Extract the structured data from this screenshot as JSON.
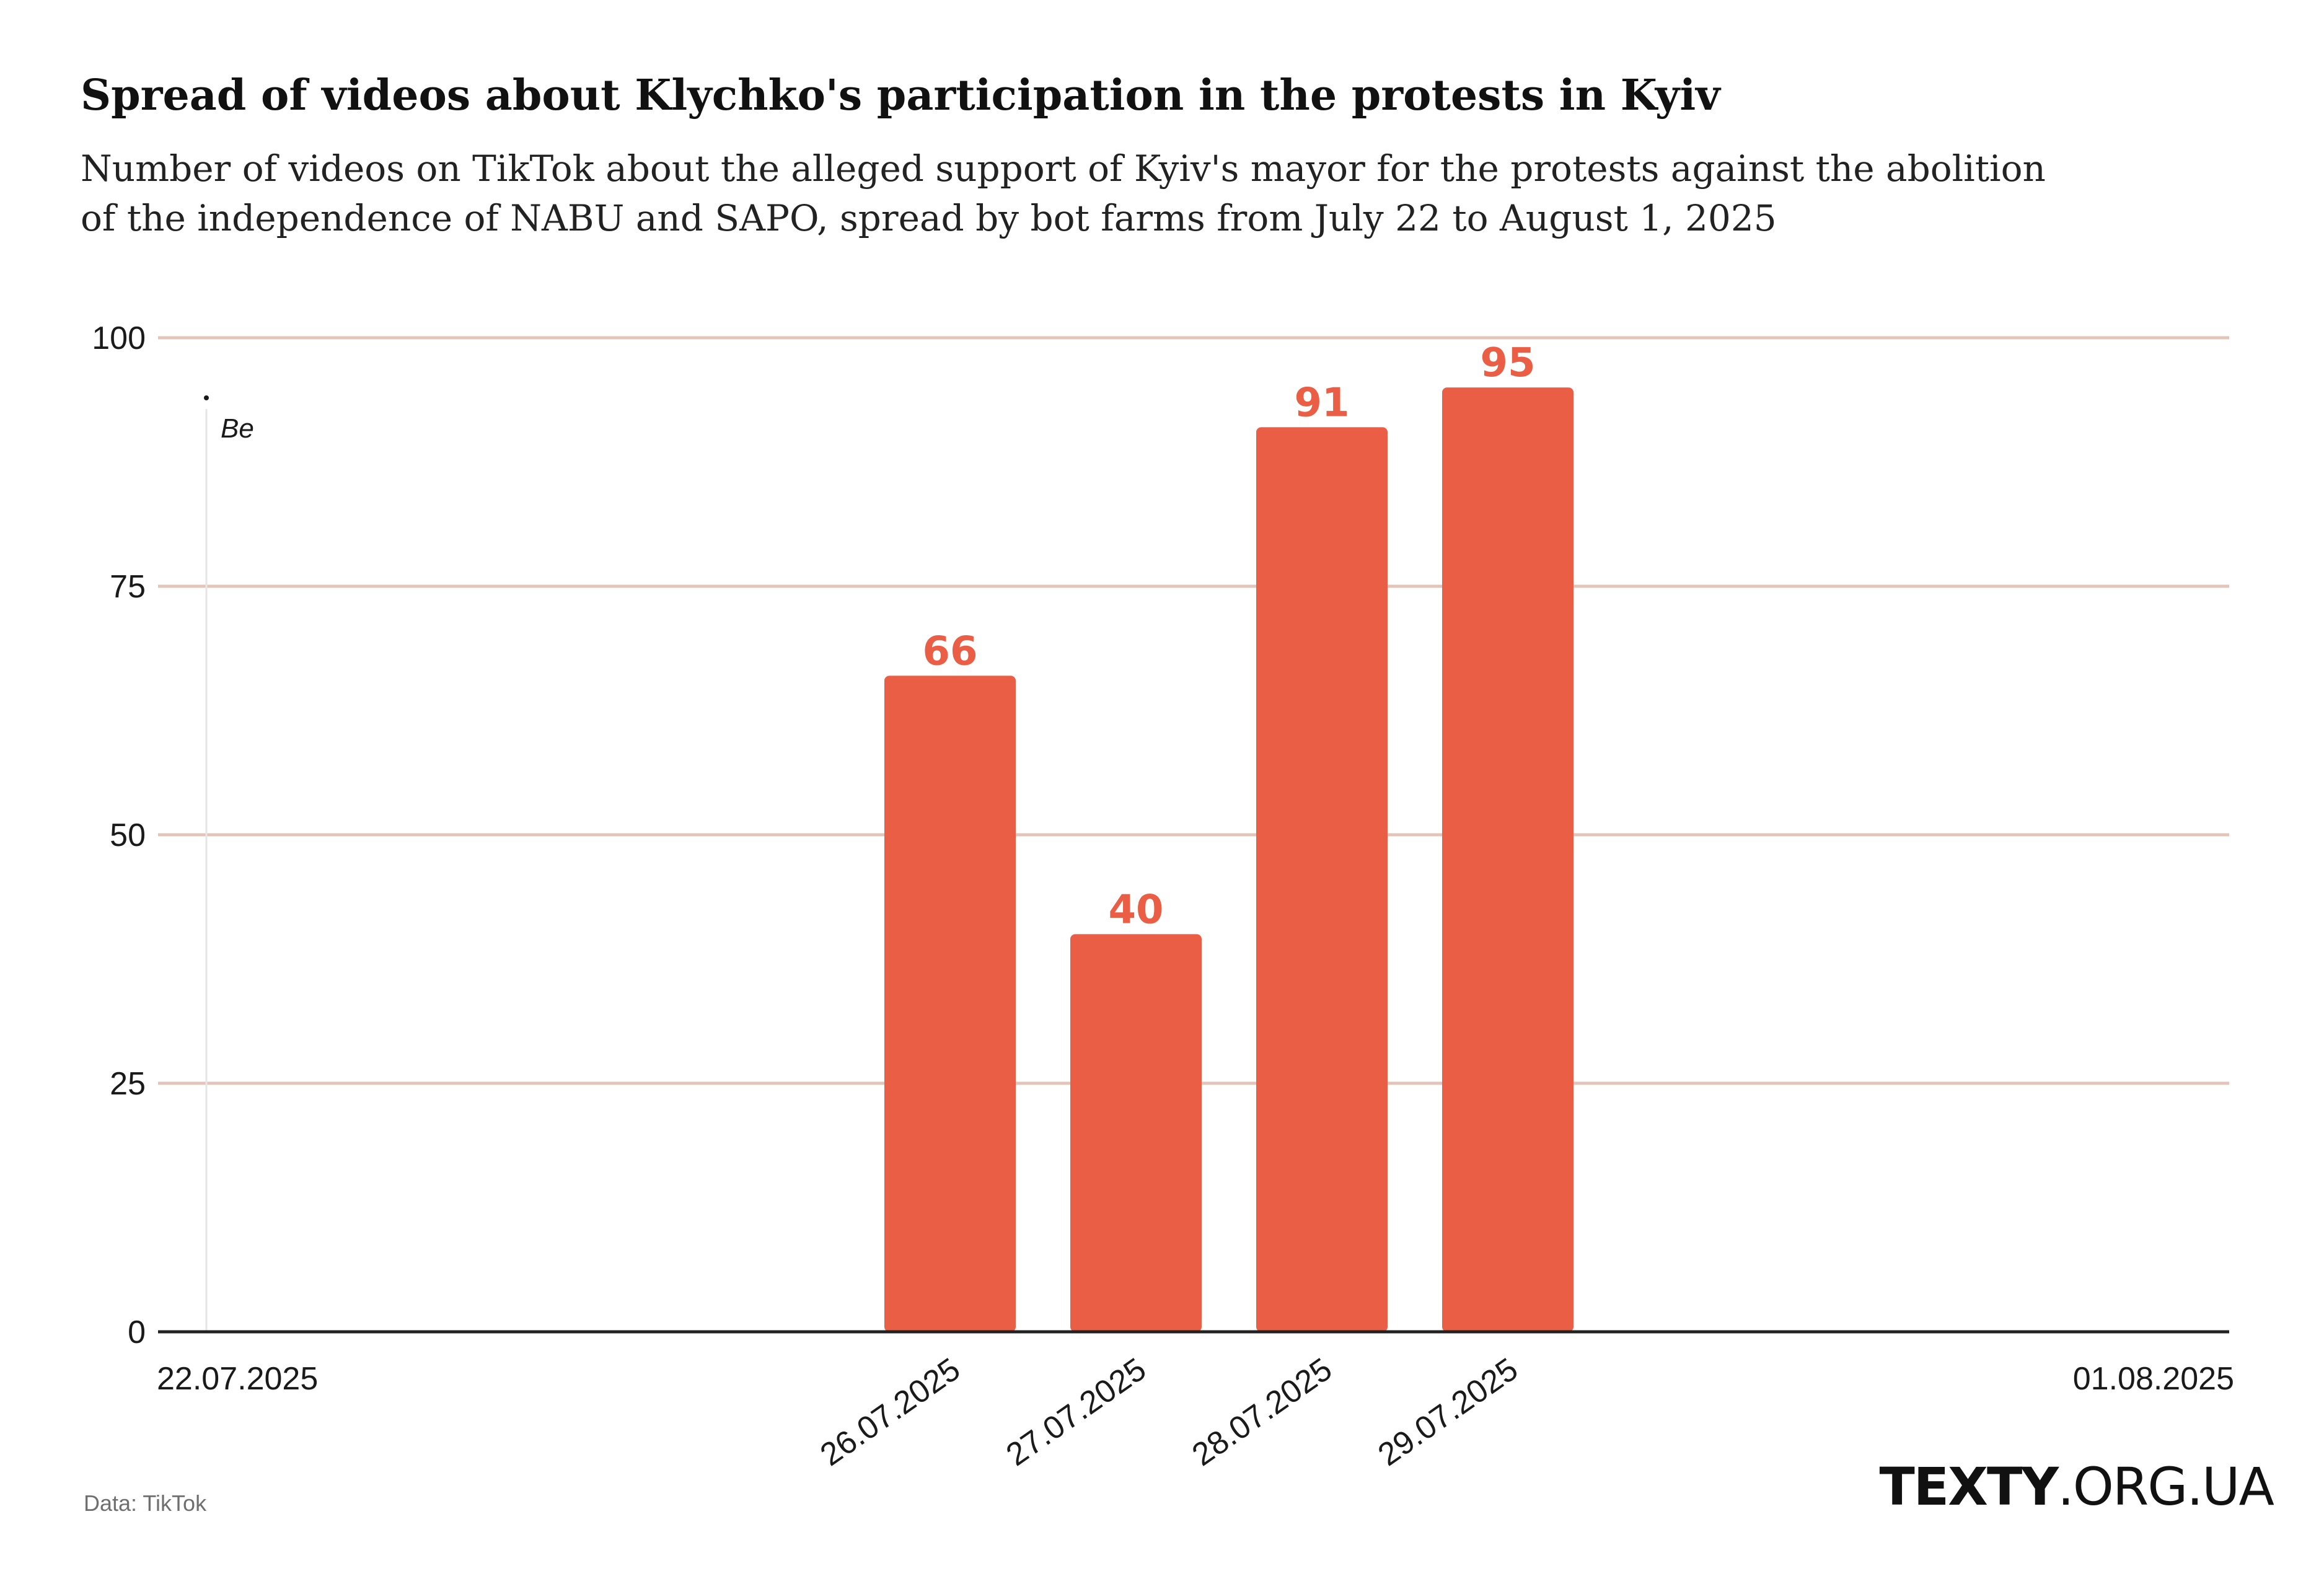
{
  "header": {
    "title": "Spread of videos about Klychko's participation in the protests in Kyiv",
    "subtitle_line1": "Number of videos on TikTok about the alleged support of Kyiv's mayor for the protests against the abolition",
    "subtitle_line2": "of the independence of NABU and SAPO, spread by bot farms from July 22 to August 1, 2025"
  },
  "footer": {
    "source": "Data: TikTok",
    "brand_bold": "TEXTY",
    "brand_rest": ".ORG.UA"
  },
  "colors": {
    "bar": "#e95e45",
    "gridline": "#e2c4b9",
    "baseline": "#222222",
    "marker_line": "#e6e6e6"
  },
  "chart_data": {
    "type": "bar",
    "title": "Spread of videos about Klychko's participation in the protests in Kyiv",
    "subtitle": "Number of videos on TikTok about the alleged support of Kyiv's mayor for the protests against the abolition of the independence of NABU and SAPO, spread by bot farms from July 22 to August 1, 2025",
    "xlabel": "",
    "ylabel": "",
    "x_axis": {
      "type": "date",
      "start": "22.07.2025",
      "end": "01.08.2025",
      "end_labels": [
        "22.07.2025",
        "01.08.2025"
      ]
    },
    "categories": [
      "26.07.2025",
      "27.07.2025",
      "28.07.2025",
      "29.07.2025"
    ],
    "values": [
      66,
      40,
      91,
      95
    ],
    "data_labels": true,
    "ylim": [
      0,
      100
    ],
    "yticks": [
      0,
      25,
      50,
      75,
      100
    ],
    "grid": true,
    "legend": "none",
    "annotations": [
      {
        "text": "Be",
        "x": "22.07.2025"
      }
    ]
  }
}
